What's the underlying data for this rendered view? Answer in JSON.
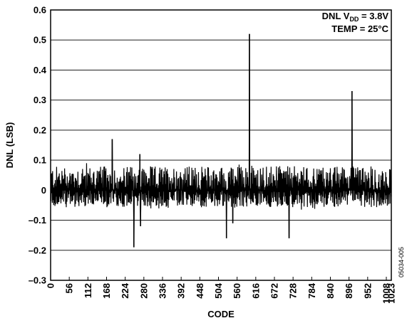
{
  "chart_data": {
    "type": "line",
    "title": "",
    "xlabel": "CODE",
    "ylabel": "DNL (LSB)",
    "xlim": [
      0,
      1023
    ],
    "ylim": [
      -0.3,
      0.6
    ],
    "grid": true,
    "annotation": {
      "line1_prefix": "DNL V",
      "line1_sub": "DD",
      "line1_suffix": " = 3.8V",
      "line2": "TEMP = 25°C"
    },
    "figure_id": "05034-005",
    "x_ticks": [
      0,
      56,
      112,
      168,
      224,
      280,
      336,
      392,
      448,
      504,
      560,
      616,
      672,
      728,
      784,
      840,
      896,
      952,
      1008,
      1023
    ],
    "x_tick_labels": [
      "0",
      "56",
      "112",
      "168",
      "224",
      "280",
      "336",
      "392",
      "448",
      "504",
      "560",
      "616",
      "672",
      "728",
      "784",
      "840",
      "896",
      "952",
      "1008",
      "1023"
    ],
    "y_ticks": [
      -0.3,
      -0.2,
      -0.1,
      0,
      0.1,
      0.2,
      0.3,
      0.4,
      0.5,
      0.6
    ],
    "y_tick_labels": [
      "–0.3",
      "–0.2",
      "–0.1",
      "0",
      "0.1",
      "0.2",
      "0.3",
      "0.4",
      "0.5",
      "0.6"
    ],
    "series": [
      {
        "noise_band": [
          -0.06,
          0.08
        ],
        "spikes": [
          {
            "x": 185,
            "y": 0.17
          },
          {
            "x": 250,
            "y": -0.19
          },
          {
            "x": 268,
            "y": 0.12
          },
          {
            "x": 270,
            "y": -0.12
          },
          {
            "x": 528,
            "y": -0.16
          },
          {
            "x": 547,
            "y": -0.11
          },
          {
            "x": 597,
            "y": 0.52
          },
          {
            "x": 716,
            "y": -0.16
          },
          {
            "x": 905,
            "y": 0.33
          }
        ]
      }
    ]
  }
}
